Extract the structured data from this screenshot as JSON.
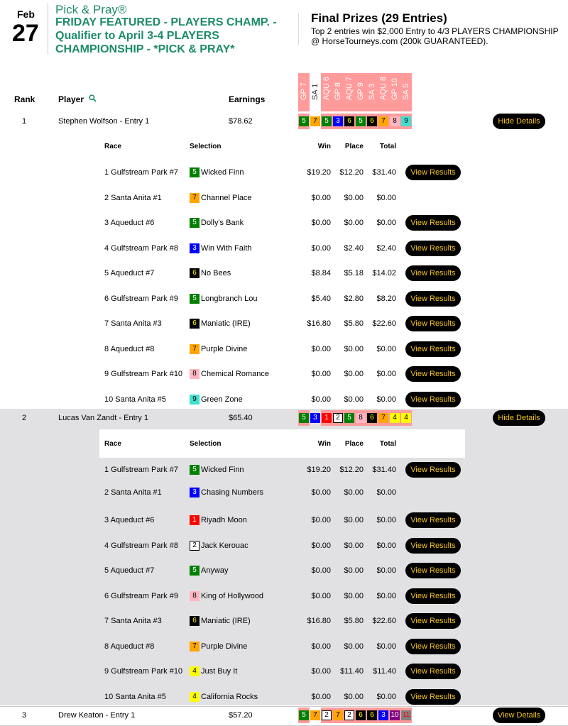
{
  "header": {
    "month": "Feb",
    "day": "27",
    "brand": "Pick & Pray®",
    "title": "FRIDAY FEATURED - PLAYERS CHAMP. - Qualifier to April 3-4 PLAYERS CHAMPIONSHIP - *PICK & PRAY*",
    "prize_title": "Final Prizes (29 Entries)",
    "prize_text": "Top 2 entries win $2,000 Entry to 4/3 PLAYERS CHAMPIONSHIP @ HorseTourneys.com (200k GUARANTEED)."
  },
  "columns": {
    "rank": "Rank",
    "player": "Player",
    "earnings": "Earnings",
    "search_icon": "search-icon"
  },
  "race_columns": [
    "GP 7",
    "SA 1",
    "AQU 6",
    "GP 8",
    "AQU 7",
    "GP 9",
    "SA 3",
    "AQU 8",
    "GP 10",
    "SA 5"
  ],
  "race_column_highlight": [
    true,
    false,
    true,
    true,
    true,
    true,
    true,
    true,
    true,
    true
  ],
  "detail_headers": {
    "race": "Race",
    "selection": "Selection",
    "win": "Win",
    "place": "Place",
    "total": "Total"
  },
  "colors": {
    "1": [
      "#ff0000",
      "#fff"
    ],
    "2": [
      "#ffffff",
      "#000"
    ],
    "3": [
      "#0000ff",
      "#fff"
    ],
    "4": [
      "#ffff00",
      "#000"
    ],
    "5": [
      "#008000",
      "#fff"
    ],
    "6": [
      "#000000",
      "#ffff00"
    ],
    "7": [
      "#ffa500",
      "#000"
    ],
    "8": [
      "#ffb6c1",
      "#000"
    ],
    "9": [
      "#40e0d0",
      "#000"
    ],
    "10": [
      "#800080",
      "#fff"
    ],
    "11": [
      "#808080",
      "#ff0000"
    ],
    "highlight": "#ff9b9b",
    "button_bg": "#000000",
    "button_text": "#f5c518",
    "brand": "#1e8c6a"
  },
  "view_results_label": "View Results",
  "entries": [
    {
      "rank": "1",
      "player": "Stephen Wolfson - Entry 1",
      "earnings": "$78.62",
      "picks": [
        "5",
        "7",
        "5",
        "3",
        "6",
        "5",
        "6",
        "7",
        "8",
        "9"
      ],
      "button": "Hide Details",
      "expanded": true,
      "details": [
        {
          "race": "1 Gulfstream Park #7",
          "num": "5",
          "horse": "Wicked Finn",
          "win": "$19.20",
          "place": "$12.20",
          "total": "$31.40",
          "results": true
        },
        {
          "race": "2 Santa Anita #1",
          "num": "7",
          "horse": "Channel Place",
          "win": "$0.00",
          "place": "$0.00",
          "total": "$0.00",
          "results": false
        },
        {
          "race": "3 Aqueduct #6",
          "num": "5",
          "horse": "Dolly's Bank",
          "win": "$0.00",
          "place": "$0.00",
          "total": "$0.00",
          "results": true
        },
        {
          "race": "4 Gulfstream Park #8",
          "num": "3",
          "horse": "Win With Faith",
          "win": "$0.00",
          "place": "$2.40",
          "total": "$2.40",
          "results": true
        },
        {
          "race": "5 Aqueduct #7",
          "num": "6",
          "horse": "No Bees",
          "win": "$8.84",
          "place": "$5.18",
          "total": "$14.02",
          "results": true
        },
        {
          "race": "6 Gulfstream Park #9",
          "num": "5",
          "horse": "Longbranch Lou",
          "win": "$5.40",
          "place": "$2.80",
          "total": "$8.20",
          "results": true
        },
        {
          "race": "7 Santa Anita #3",
          "num": "6",
          "horse": "Maniatic (IRE)",
          "win": "$16.80",
          "place": "$5.80",
          "total": "$22.60",
          "results": true
        },
        {
          "race": "8 Aqueduct #8",
          "num": "7",
          "horse": "Purple Divine",
          "win": "$0.00",
          "place": "$0.00",
          "total": "$0.00",
          "results": true
        },
        {
          "race": "9 Gulfstream Park #10",
          "num": "8",
          "horse": "Chemical Romance",
          "win": "$0.00",
          "place": "$0.00",
          "total": "$0.00",
          "results": true
        },
        {
          "race": "10 Santa Anita #5",
          "num": "9",
          "horse": "Green Zone",
          "win": "$0.00",
          "place": "$0.00",
          "total": "$0.00",
          "results": true
        }
      ]
    },
    {
      "rank": "2",
      "player": "Lucas Van Zandt - Entry 1",
      "earnings": "$65.40",
      "picks": [
        "5",
        "3",
        "1",
        "2",
        "5",
        "8",
        "6",
        "7",
        "4",
        "4"
      ],
      "button": "Hide Details",
      "expanded": true,
      "details": [
        {
          "race": "1 Gulfstream Park #7",
          "num": "5",
          "horse": "Wicked Finn",
          "win": "$19.20",
          "place": "$12.20",
          "total": "$31.40",
          "results": true
        },
        {
          "race": "2 Santa Anita #1",
          "num": "3",
          "horse": "Chasing Numbers",
          "win": "$0.00",
          "place": "$0.00",
          "total": "$0.00",
          "results": false
        },
        {
          "race": "3 Aqueduct #6",
          "num": "1",
          "horse": "Riyadh Moon",
          "win": "$0.00",
          "place": "$0.00",
          "total": "$0.00",
          "results": true
        },
        {
          "race": "4 Gulfstream Park #8",
          "num": "2",
          "horse": "Jack Kerouac",
          "win": "$0.00",
          "place": "$0.00",
          "total": "$0.00",
          "results": true
        },
        {
          "race": "5 Aqueduct #7",
          "num": "5",
          "horse": "Anyway",
          "win": "$0.00",
          "place": "$0.00",
          "total": "$0.00",
          "results": true
        },
        {
          "race": "6 Gulfstream Park #9",
          "num": "8",
          "horse": "King of Hollywood",
          "win": "$0.00",
          "place": "$0.00",
          "total": "$0.00",
          "results": true
        },
        {
          "race": "7 Santa Anita #3",
          "num": "6",
          "horse": "Maniatic (IRE)",
          "win": "$16.80",
          "place": "$5.80",
          "total": "$22.60",
          "results": true
        },
        {
          "race": "8 Aqueduct #8",
          "num": "7",
          "horse": "Purple Divine",
          "win": "$0.00",
          "place": "$0.00",
          "total": "$0.00",
          "results": true
        },
        {
          "race": "9 Gulfstream Park #10",
          "num": "4",
          "horse": "Just Buy It",
          "win": "$0.00",
          "place": "$11.40",
          "total": "$11.40",
          "results": true
        },
        {
          "race": "10 Santa Anita #5",
          "num": "4",
          "horse": "California Rocks",
          "win": "$0.00",
          "place": "$0.00",
          "total": "$0.00",
          "results": true
        }
      ]
    },
    {
      "rank": "3",
      "player": "Drew Keaton - Entry 1",
      "earnings": "$57.20",
      "picks": [
        "5",
        "7",
        "2",
        "7",
        "2",
        "6",
        "6",
        "3",
        "10",
        "11"
      ],
      "button": "View Details",
      "expanded": false,
      "details": []
    }
  ]
}
